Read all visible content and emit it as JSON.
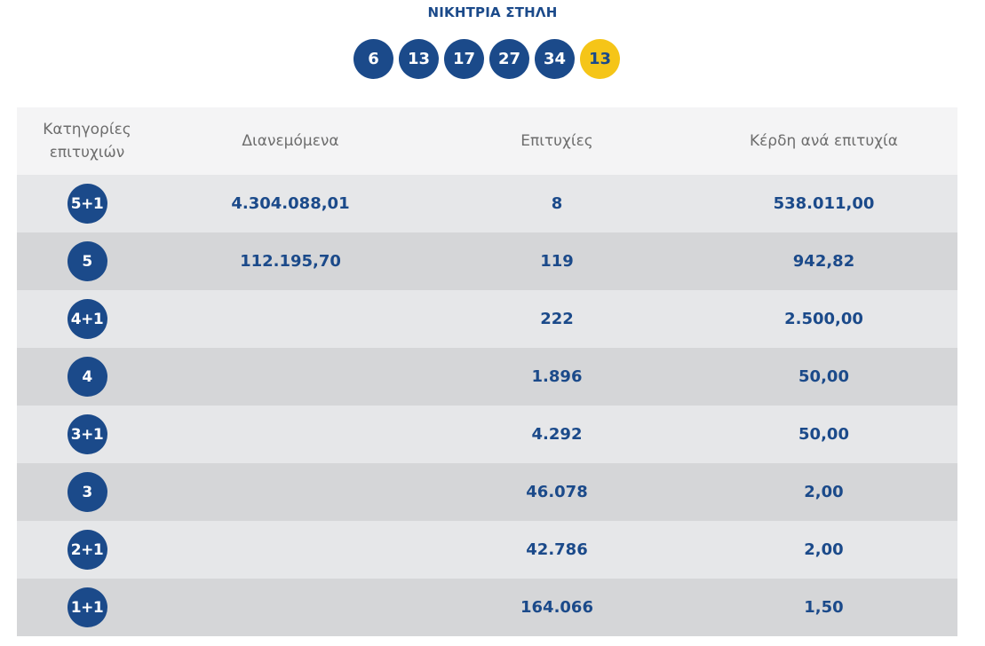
{
  "header": {
    "title": "ΝΙΚΗΤΡΙΑ ΣΤΗΛΗ"
  },
  "winning_numbers": {
    "main": [
      "6",
      "13",
      "17",
      "27",
      "34"
    ],
    "bonus": "13"
  },
  "colors": {
    "primary": "#1b4a8a",
    "bonus": "#f5c518",
    "header_bg": "#f4f4f5",
    "row_light": "#e6e7e9",
    "row_dark": "#d5d6d8"
  },
  "table": {
    "headers": {
      "category": "Κατηγορίες επιτυχιών",
      "distributed": "Διανεμόμενα",
      "winners": "Επιτυχίες",
      "prize": "Κέρδη ανά επιτυχία"
    },
    "rows": [
      {
        "category": "5+1",
        "distributed": "4.304.088,01",
        "winners": "8",
        "prize": "538.011,00"
      },
      {
        "category": "5",
        "distributed": "112.195,70",
        "winners": "119",
        "prize": "942,82"
      },
      {
        "category": "4+1",
        "distributed": "",
        "winners": "222",
        "prize": "2.500,00"
      },
      {
        "category": "4",
        "distributed": "",
        "winners": "1.896",
        "prize": "50,00"
      },
      {
        "category": "3+1",
        "distributed": "",
        "winners": "4.292",
        "prize": "50,00"
      },
      {
        "category": "3",
        "distributed": "",
        "winners": "46.078",
        "prize": "2,00"
      },
      {
        "category": "2+1",
        "distributed": "",
        "winners": "42.786",
        "prize": "2,00"
      },
      {
        "category": "1+1",
        "distributed": "",
        "winners": "164.066",
        "prize": "1,50"
      }
    ]
  }
}
